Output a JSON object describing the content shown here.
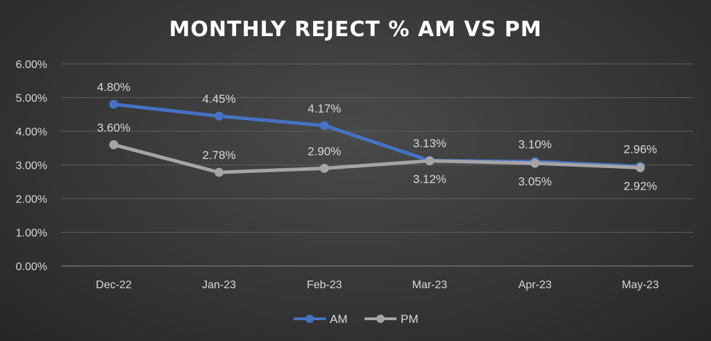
{
  "chart_data": {
    "type": "line",
    "title": "MONTHLY REJECT % AM VS PM",
    "xlabel": "",
    "ylabel": "",
    "categories": [
      "Dec-22",
      "Jan-23",
      "Feb-23",
      "Mar-23",
      "Apr-23",
      "May-23"
    ],
    "y_ticks": [
      "0.00%",
      "1.00%",
      "2.00%",
      "3.00%",
      "4.00%",
      "5.00%",
      "6.00%"
    ],
    "ylim": [
      0,
      6
    ],
    "grid": true,
    "legend_position": "bottom",
    "series": [
      {
        "name": "AM",
        "color": "#4472c4",
        "values": [
          4.8,
          4.45,
          4.17,
          3.13,
          3.1,
          2.96
        ],
        "labels": [
          "4.80%",
          "4.45%",
          "4.17%",
          "3.13%",
          "3.10%",
          "2.96%"
        ],
        "label_placement": [
          "above",
          "above",
          "above",
          "above",
          "above",
          "above"
        ]
      },
      {
        "name": "PM",
        "color": "#a5a5a5",
        "values": [
          3.6,
          2.78,
          2.9,
          3.12,
          3.05,
          2.92
        ],
        "labels": [
          "3.60%",
          "2.78%",
          "2.90%",
          "3.12%",
          "3.05%",
          "2.92%"
        ],
        "label_placement": [
          "above",
          "above",
          "above",
          "below",
          "below",
          "below"
        ]
      }
    ]
  }
}
